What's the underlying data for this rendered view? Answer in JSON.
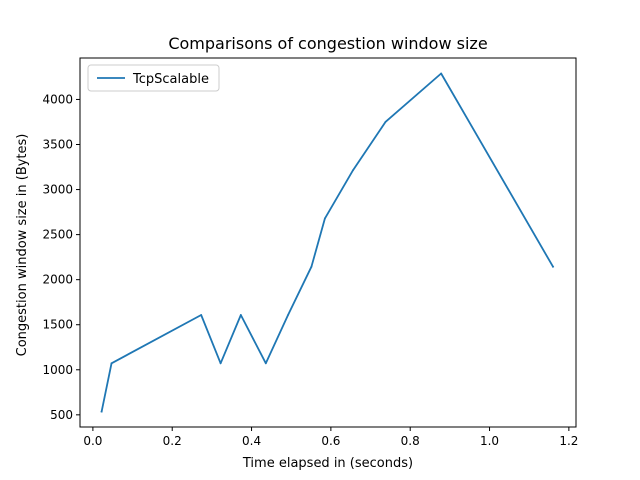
{
  "chart_data": {
    "type": "line",
    "title": "Comparisons of congestion window size",
    "xlabel": "Time elapsed in (seconds)",
    "ylabel": "Congestion window size in (Bytes)",
    "xlim": [
      -0.0325,
      1.218
    ],
    "ylim": [
      365,
      4460
    ],
    "xticks": [
      0.0,
      0.2,
      0.4,
      0.6,
      0.8,
      1.0,
      1.2
    ],
    "xtick_labels": [
      "0.0",
      "0.2",
      "0.4",
      "0.6",
      "0.8",
      "1.0",
      "1.2"
    ],
    "yticks": [
      500,
      1000,
      1500,
      2000,
      2500,
      3000,
      3500,
      4000
    ],
    "ytick_labels": [
      "500",
      "1000",
      "1500",
      "2000",
      "2500",
      "3000",
      "3500",
      "4000"
    ],
    "grid": false,
    "legend": {
      "position": "top-left"
    },
    "series": [
      {
        "name": "TcpScalable",
        "color": "#1f77b4",
        "x": [
          0.022,
          0.047,
          0.273,
          0.322,
          0.373,
          0.436,
          0.492,
          0.551,
          0.585,
          0.656,
          0.738,
          0.878,
          1.16
        ],
        "y": [
          536,
          1072,
          1608,
          1072,
          1608,
          1072,
          1608,
          2144,
          2680,
          3216,
          3752,
          4288,
          2144
        ]
      }
    ]
  }
}
